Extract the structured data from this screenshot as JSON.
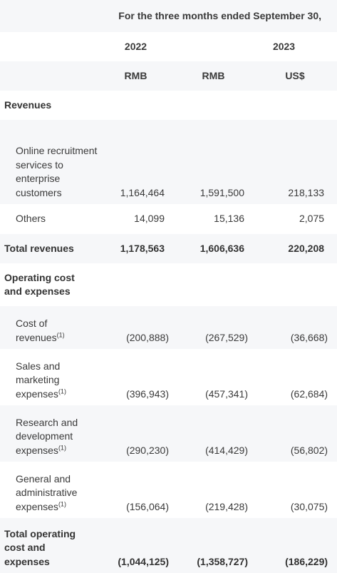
{
  "header": {
    "period": "For the three months ended September 30,",
    "years": [
      "2022",
      "2023"
    ],
    "currencies": [
      "RMB",
      "RMB",
      "US$"
    ]
  },
  "sections": {
    "revenues_heading": "Revenues",
    "opex_heading": "Operating cost and expenses"
  },
  "footnote_marker": "(1)",
  "rows": {
    "online": {
      "label": "Online recruitment services to enterprise customers",
      "v2022": "1,164,464",
      "v2023rmb": "1,591,500",
      "v2023usd": "218,133"
    },
    "others": {
      "label": "Others",
      "v2022": "14,099",
      "v2023rmb": "15,136",
      "v2023usd": "2,075"
    },
    "total_revenues": {
      "label": "Total revenues",
      "v2022": "1,178,563",
      "v2023rmb": "1,606,636",
      "v2023usd": "220,208"
    },
    "cost": {
      "label": "Cost of revenues",
      "v2022": "(200,888)",
      "v2023rmb": "(267,529)",
      "v2023usd": "(36,668)"
    },
    "sales": {
      "label": "Sales and marketing expenses",
      "v2022": "(396,943)",
      "v2023rmb": "(457,341)",
      "v2023usd": "(62,684)"
    },
    "rnd": {
      "label": "Research and development expenses",
      "v2022": "(290,230)",
      "v2023rmb": "(414,429)",
      "v2023usd": "(56,802)"
    },
    "ga": {
      "label": "General and administrative expenses",
      "v2022": "(156,064)",
      "v2023rmb": "(219,428)",
      "v2023usd": "(30,075)"
    },
    "total_opex": {
      "label": "Total operating cost and expenses",
      "v2022": "(1,044,125)",
      "v2023rmb": "(1,358,727)",
      "v2023usd": "(186,229)"
    }
  }
}
